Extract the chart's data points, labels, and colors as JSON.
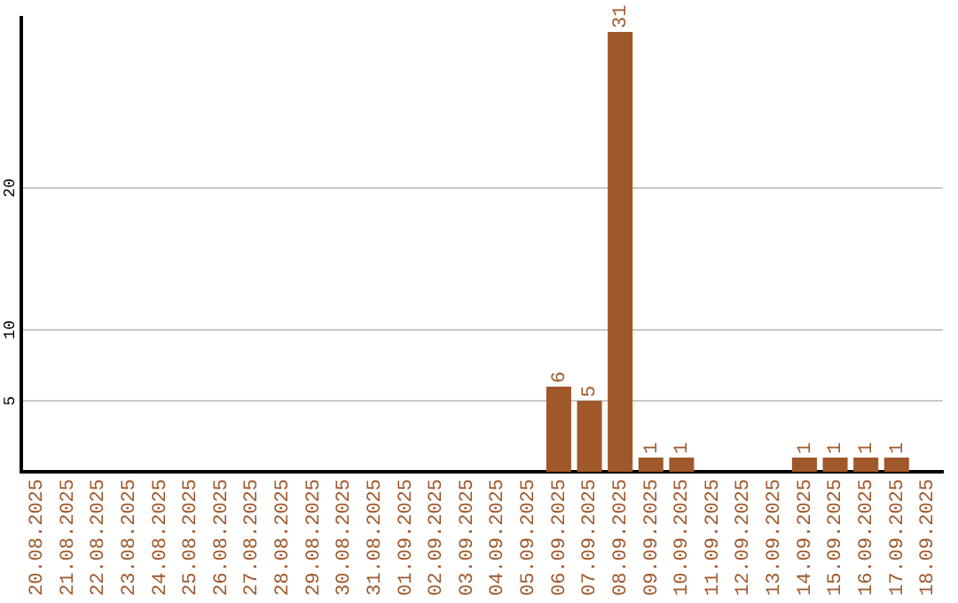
{
  "chart_data": {
    "type": "bar",
    "categories": [
      "20.08.2025",
      "21.08.2025",
      "22.08.2025",
      "23.08.2025",
      "24.08.2025",
      "25.08.2025",
      "26.08.2025",
      "27.08.2025",
      "28.08.2025",
      "29.08.2025",
      "30.08.2025",
      "31.08.2025",
      "01.09.2025",
      "02.09.2025",
      "03.09.2025",
      "04.09.2025",
      "05.09.2025",
      "06.09.2025",
      "07.09.2025",
      "08.09.2025",
      "09.09.2025",
      "10.09.2025",
      "11.09.2025",
      "12.09.2025",
      "13.09.2025",
      "14.09.2025",
      "15.09.2025",
      "16.09.2025",
      "17.09.2025",
      "18.09.2025"
    ],
    "values": [
      0,
      0,
      0,
      0,
      0,
      0,
      0,
      0,
      0,
      0,
      0,
      0,
      0,
      0,
      0,
      0,
      0,
      6,
      5,
      31,
      1,
      1,
      0,
      0,
      0,
      1,
      1,
      1,
      1,
      0
    ],
    "value_labels": [
      null,
      null,
      null,
      null,
      null,
      null,
      null,
      null,
      null,
      null,
      null,
      null,
      null,
      null,
      null,
      null,
      null,
      "6",
      "5",
      "31",
      "1",
      "1",
      null,
      null,
      null,
      "1",
      "1",
      "1",
      "1",
      null
    ],
    "color": "#a0582a",
    "ylim": [
      0,
      32
    ],
    "yticks": [
      5,
      10,
      20
    ],
    "grid": "y",
    "legend": false
  }
}
